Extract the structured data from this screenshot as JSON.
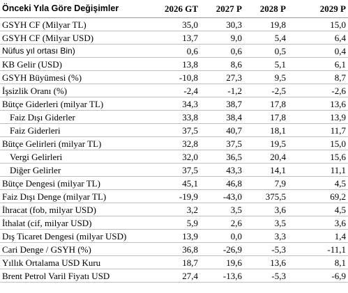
{
  "table": {
    "header": [
      "Önceki Yıla Göre Değişimler",
      "2026 GT",
      "2027 P",
      "2028 P",
      "2029 P"
    ],
    "rows": [
      [
        "GSYH CF (Milyar TL)",
        "35,0",
        "30,3",
        "19,8",
        "15,0"
      ],
      [
        "GSYH CF (Milyar USD)",
        "13,7",
        "9,0",
        "5,4",
        "6,4"
      ],
      [
        "Nüfus yıl ortası Bin)",
        "0,6",
        "0,6",
        "0,5",
        "0,4"
      ],
      [
        "KB Gelir (USD)",
        "13,8",
        "8,6",
        "5,1",
        "6,1"
      ],
      [
        "GSYH Büyümesi (%)",
        "-10,8",
        "27,3",
        "9,5",
        "8,7"
      ],
      [
        "İşsizlik Oranı (%)",
        "-2,4",
        "-1,2",
        "-2,5",
        "-2,6"
      ],
      [
        "Bütçe Giderleri (milyar TL)",
        "34,3",
        "38,7",
        "17,8",
        "13,6"
      ],
      [
        "Faiz Dışı Giderler",
        "33,8",
        "38,4",
        "17,8",
        "13,9"
      ],
      [
        "Faiz Giderleri",
        "37,5",
        "40,7",
        "18,1",
        "11,7"
      ],
      [
        "Bütçe Gelirleri (milyar TL)",
        "32,8",
        "37,5",
        "19,5",
        "15,0"
      ],
      [
        "Vergi Gelirleri",
        "32,0",
        "36,5",
        "20,4",
        "15,6"
      ],
      [
        "Diğer Gelirler",
        "37,5",
        "43,3",
        "14,1",
        "11,1"
      ],
      [
        "Bütçe Dengesi (milyar TL)",
        "45,1",
        "46,8",
        "7,9",
        "4,5"
      ],
      [
        "Faiz Dışı Denge (milyar TL)",
        "-19,9",
        "-43,0",
        "375,5",
        "69,2"
      ],
      [
        "İhracat (fob, milyar USD)",
        "3,2",
        "3,5",
        "3,6",
        "4,5"
      ],
      [
        "İthalat (cif, milyar USD)",
        "5,9",
        "2,6",
        "3,5",
        "3,6"
      ],
      [
        "Dış Ticaret Dengesi (milyar USD)",
        "13,9",
        "0,0",
        "3,3",
        "1,4"
      ],
      [
        "Cari Denge / GSYH (%)",
        "36,8",
        "-26,9",
        "-5,3",
        "-11,1"
      ],
      [
        "Yıllık Ortalama USD Kuru",
        "18,7",
        "19,6",
        "13,6",
        "8,1"
      ],
      [
        "Brent Petrol Varil Fiyatı USD",
        "27,4",
        "-13,6",
        "-5,3",
        "-6,9"
      ]
    ]
  }
}
